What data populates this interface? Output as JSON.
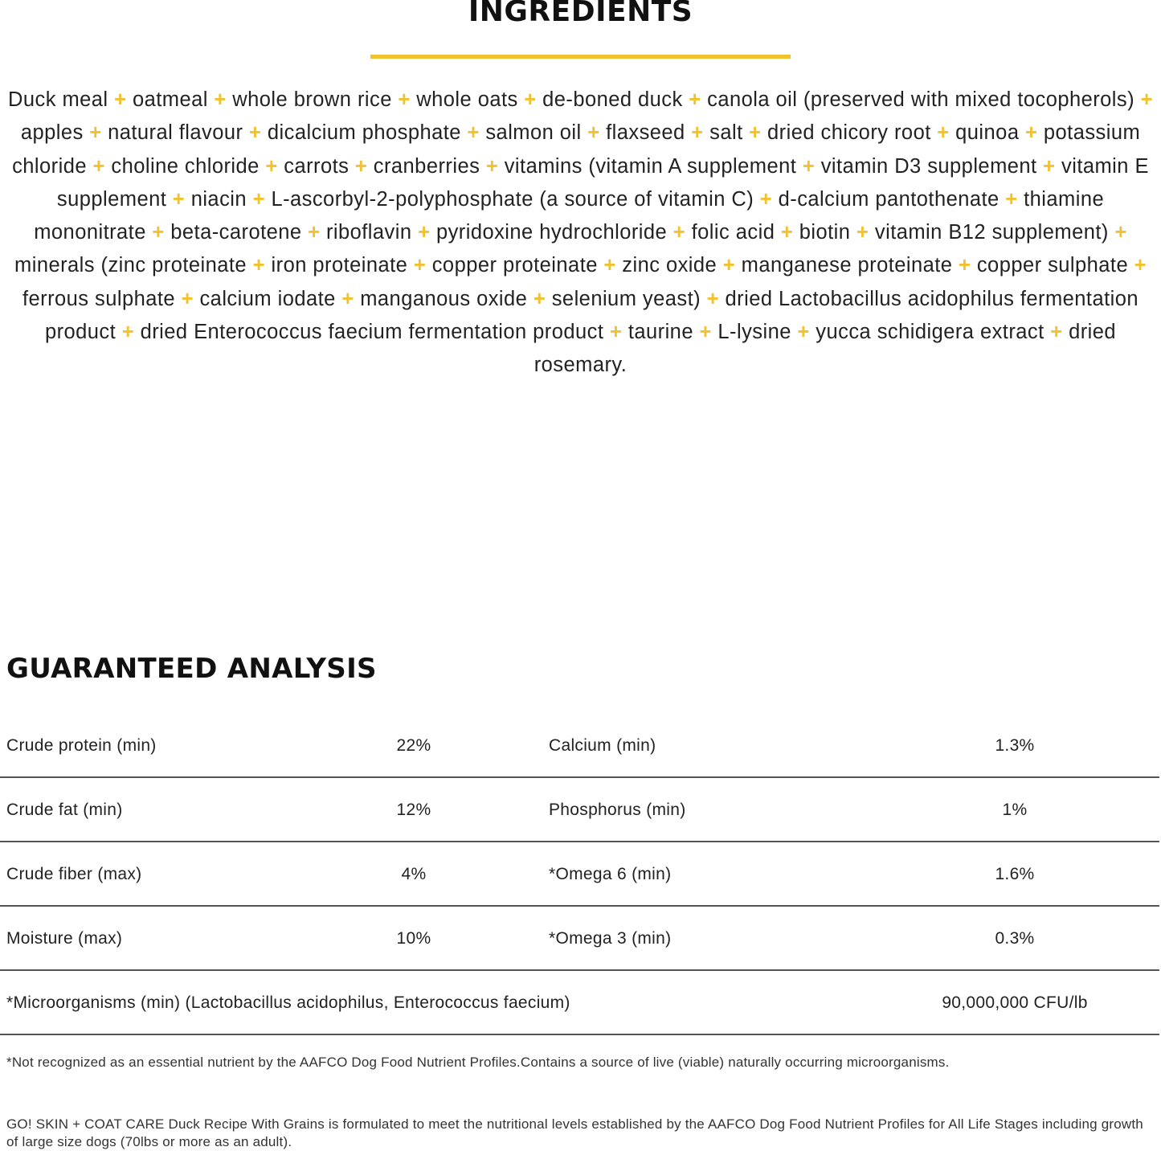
{
  "ingredients": {
    "title": "INGREDIENTS",
    "accent_color": "#f2c12e",
    "separator": "+",
    "items": [
      "Duck meal",
      "oatmeal",
      "whole brown rice",
      "whole oats",
      "de-boned duck",
      "canola oil (preserved with mixed tocopherols)",
      "apples",
      "natural flavour",
      "dicalcium phosphate",
      "salmon oil",
      "flaxseed",
      "salt",
      "dried chicory root",
      "quinoa",
      "potassium chloride",
      "choline chloride",
      "carrots",
      "cranberries",
      "vitamins (vitamin A supplement",
      "vitamin D3 supplement",
      "vitamin E supplement",
      "niacin",
      "L-ascorbyl-2-polyphosphate (a source of vitamin C)",
      "d-calcium pantothenate",
      "thiamine mononitrate",
      "beta-carotene",
      "riboflavin",
      "pyridoxine hydrochloride",
      "folic acid",
      "biotin",
      "vitamin B12 supplement)",
      "minerals (zinc proteinate",
      "iron proteinate",
      "copper proteinate",
      "zinc oxide",
      "manganese proteinate",
      "copper sulphate",
      "ferrous sulphate",
      "calcium iodate",
      "manganous oxide",
      "selenium yeast)",
      "dried Lactobacillus acidophilus fermentation product",
      "dried Enterococcus faecium fermentation product",
      "taurine",
      "L-lysine",
      "yucca schidigera extract",
      "dried rosemary."
    ]
  },
  "analysis": {
    "title": "GUARANTEED ANALYSIS",
    "rows": [
      {
        "label1": "Crude protein (min)",
        "value1": "22%",
        "label2": "Calcium (min)",
        "value2": "1.3%"
      },
      {
        "label1": "Crude fat (min)",
        "value1": "12%",
        "label2": "Phosphorus (min)",
        "value2": "1%"
      },
      {
        "label1": "Crude fiber (max)",
        "value1": "4%",
        "label2": "*Omega 6 (min)",
        "value2": "1.6%"
      },
      {
        "label1": "Moisture (max)",
        "value1": "10%",
        "label2": "*Omega 3 (min)",
        "value2": "0.3%"
      }
    ],
    "micro_row": {
      "label": "*Microorganisms (min) (Lactobacillus acidophilus, Enterococcus faecium)",
      "value": "90,000,000 CFU/lb"
    },
    "footnote": "*Not recognized as an essential nutrient by the AAFCO Dog Food Nutrient Profiles.Contains a source of live (viable) naturally occurring microorganisms.",
    "statement": "GO! SKIN + COAT CARE Duck Recipe With Grains is formulated to meet the nutritional levels established by the AAFCO Dog Food Nutrient Profiles for All Life Stages including growth of large size dogs (70lbs or more as an adult)."
  }
}
